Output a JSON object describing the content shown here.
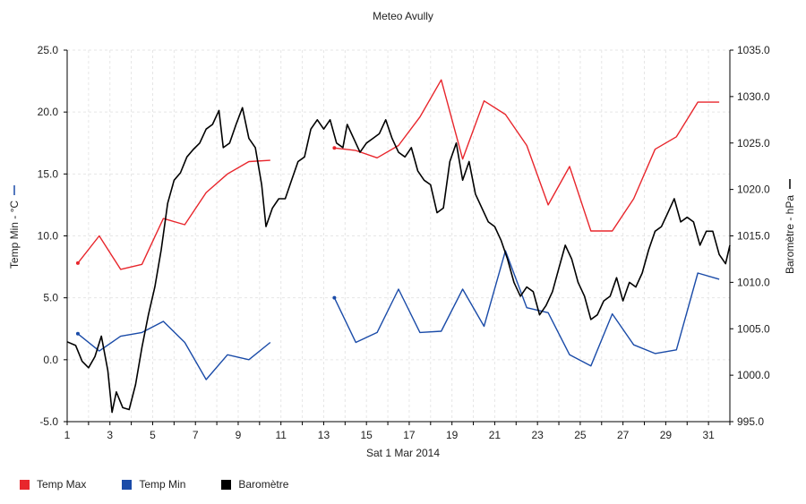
{
  "chart_data": {
    "type": "line",
    "title": "Meteo  Avully",
    "xlabel": "Sat 1 Mar 2014",
    "ylabel_left": "Temp Min - °C",
    "ylabel_right": "Baromètre - hPa",
    "xlim": [
      1,
      32
    ],
    "x_ticks": [
      1,
      3,
      5,
      7,
      9,
      11,
      13,
      15,
      17,
      19,
      21,
      23,
      25,
      27,
      29,
      31
    ],
    "ylim_left": [
      -5,
      25
    ],
    "y_ticks_left": [
      "-5.0",
      "0.0",
      "5.0",
      "10.0",
      "15.0",
      "20.0",
      "25.0"
    ],
    "ylim_right": [
      995,
      1035
    ],
    "y_ticks_right": [
      "995.0",
      "1000.0",
      "1005.0",
      "1010.0",
      "1015.0",
      "1020.0",
      "1025.0",
      "1030.0",
      "1035.0"
    ],
    "grid": true,
    "legend_position": "bottom-left",
    "series": [
      {
        "name": "Temp Max",
        "color": "#e8262c",
        "axis": "left",
        "segments": [
          [
            [
              1.5,
              7.8
            ],
            [
              2.5,
              10.0
            ],
            [
              3.5,
              7.3
            ],
            [
              4.5,
              7.7
            ],
            [
              5.5,
              11.4
            ],
            [
              6.5,
              10.9
            ],
            [
              7.5,
              13.5
            ],
            [
              8.5,
              15.0
            ],
            [
              9.5,
              16.0
            ],
            [
              10.5,
              16.1
            ]
          ],
          [
            [
              13.5,
              17.1
            ],
            [
              14.5,
              16.9
            ],
            [
              15.5,
              16.3
            ],
            [
              16.5,
              17.3
            ],
            [
              17.5,
              19.6
            ],
            [
              18.5,
              22.6
            ],
            [
              19.5,
              16.2
            ],
            [
              20.5,
              20.9
            ],
            [
              21.5,
              19.8
            ],
            [
              22.5,
              17.3
            ],
            [
              23.5,
              12.5
            ],
            [
              24.5,
              15.6
            ],
            [
              25.5,
              10.4
            ],
            [
              26.5,
              10.4
            ],
            [
              27.5,
              13.0
            ],
            [
              28.5,
              17.0
            ],
            [
              29.5,
              18.0
            ],
            [
              30.5,
              20.8
            ],
            [
              31.5,
              20.8
            ]
          ]
        ]
      },
      {
        "name": "Temp Min",
        "color": "#1a4ba8",
        "axis": "left",
        "segments": [
          [
            [
              1.5,
              2.1
            ],
            [
              2.5,
              0.7
            ],
            [
              3.5,
              1.9
            ],
            [
              4.5,
              2.2
            ],
            [
              5.5,
              3.1
            ],
            [
              6.5,
              1.4
            ],
            [
              7.5,
              -1.6
            ],
            [
              8.5,
              0.4
            ],
            [
              9.5,
              0.0
            ],
            [
              10.5,
              1.4
            ]
          ],
          [
            [
              13.5,
              5.0
            ],
            [
              14.5,
              1.4
            ],
            [
              15.5,
              2.2
            ],
            [
              16.5,
              5.7
            ],
            [
              17.5,
              2.2
            ],
            [
              18.5,
              2.3
            ],
            [
              19.5,
              5.7
            ],
            [
              20.5,
              2.7
            ],
            [
              21.5,
              8.8
            ],
            [
              22.5,
              4.2
            ],
            [
              23.5,
              3.8
            ],
            [
              24.5,
              0.4
            ],
            [
              25.5,
              -0.5
            ],
            [
              26.5,
              3.7
            ],
            [
              27.5,
              1.2
            ],
            [
              28.5,
              0.5
            ],
            [
              29.5,
              0.8
            ],
            [
              30.5,
              7.0
            ],
            [
              31.5,
              6.5
            ]
          ]
        ]
      },
      {
        "name": "Baromètre",
        "color": "#000000",
        "axis": "right",
        "points": [
          [
            1.0,
            1003.6
          ],
          [
            1.4,
            1003.2
          ],
          [
            1.7,
            1001.5
          ],
          [
            2.0,
            1000.8
          ],
          [
            2.3,
            1002.0
          ],
          [
            2.6,
            1004.2
          ],
          [
            2.9,
            1000.5
          ],
          [
            3.1,
            996.0
          ],
          [
            3.3,
            998.2
          ],
          [
            3.6,
            996.5
          ],
          [
            3.9,
            996.3
          ],
          [
            4.2,
            999.0
          ],
          [
            4.5,
            1003.0
          ],
          [
            4.8,
            1006.5
          ],
          [
            5.1,
            1009.5
          ],
          [
            5.4,
            1013.5
          ],
          [
            5.7,
            1018.5
          ],
          [
            6.0,
            1021.0
          ],
          [
            6.3,
            1021.8
          ],
          [
            6.6,
            1023.5
          ],
          [
            6.9,
            1024.3
          ],
          [
            7.2,
            1025.0
          ],
          [
            7.5,
            1026.5
          ],
          [
            7.8,
            1027.0
          ],
          [
            8.1,
            1028.5
          ],
          [
            8.3,
            1024.5
          ],
          [
            8.6,
            1025.0
          ],
          [
            8.9,
            1027.0
          ],
          [
            9.2,
            1028.8
          ],
          [
            9.5,
            1025.5
          ],
          [
            9.8,
            1024.5
          ],
          [
            10.1,
            1020.5
          ],
          [
            10.3,
            1016.0
          ],
          [
            10.6,
            1018.0
          ],
          [
            10.9,
            1019.0
          ],
          [
            11.2,
            1019.0
          ],
          [
            11.5,
            1021.0
          ],
          [
            11.8,
            1023.0
          ],
          [
            12.1,
            1023.5
          ],
          [
            12.4,
            1026.5
          ],
          [
            12.7,
            1027.5
          ],
          [
            13.0,
            1026.5
          ],
          [
            13.3,
            1027.5
          ],
          [
            13.6,
            1025.0
          ],
          [
            13.9,
            1024.5
          ],
          [
            14.1,
            1027.0
          ],
          [
            14.4,
            1025.5
          ],
          [
            14.7,
            1024.0
          ],
          [
            15.0,
            1025.0
          ],
          [
            15.3,
            1025.5
          ],
          [
            15.6,
            1026.0
          ],
          [
            15.9,
            1027.5
          ],
          [
            16.2,
            1025.5
          ],
          [
            16.5,
            1024.0
          ],
          [
            16.8,
            1023.5
          ],
          [
            17.1,
            1024.5
          ],
          [
            17.4,
            1022.0
          ],
          [
            17.7,
            1021.0
          ],
          [
            18.0,
            1020.5
          ],
          [
            18.3,
            1017.5
          ],
          [
            18.6,
            1018.0
          ],
          [
            18.9,
            1023.0
          ],
          [
            19.2,
            1025.0
          ],
          [
            19.5,
            1021.0
          ],
          [
            19.8,
            1023.0
          ],
          [
            20.1,
            1019.5
          ],
          [
            20.4,
            1018.0
          ],
          [
            20.7,
            1016.5
          ],
          [
            21.0,
            1016.0
          ],
          [
            21.3,
            1014.5
          ],
          [
            21.6,
            1012.5
          ],
          [
            21.9,
            1010.0
          ],
          [
            22.2,
            1008.5
          ],
          [
            22.5,
            1009.5
          ],
          [
            22.8,
            1009.0
          ],
          [
            23.1,
            1006.5
          ],
          [
            23.4,
            1007.5
          ],
          [
            23.7,
            1009.0
          ],
          [
            24.0,
            1011.5
          ],
          [
            24.3,
            1014.0
          ],
          [
            24.6,
            1012.5
          ],
          [
            24.9,
            1010.0
          ],
          [
            25.2,
            1008.5
          ],
          [
            25.5,
            1006.0
          ],
          [
            25.8,
            1006.5
          ],
          [
            26.1,
            1008.0
          ],
          [
            26.4,
            1008.5
          ],
          [
            26.7,
            1010.5
          ],
          [
            27.0,
            1008.0
          ],
          [
            27.3,
            1010.0
          ],
          [
            27.6,
            1009.5
          ],
          [
            27.9,
            1011.0
          ],
          [
            28.2,
            1013.5
          ],
          [
            28.5,
            1015.5
          ],
          [
            28.8,
            1016.0
          ],
          [
            29.1,
            1017.5
          ],
          [
            29.4,
            1019.0
          ],
          [
            29.7,
            1016.5
          ],
          [
            30.0,
            1017.0
          ],
          [
            30.3,
            1016.5
          ],
          [
            30.6,
            1014.0
          ],
          [
            30.9,
            1015.5
          ],
          [
            31.2,
            1015.5
          ],
          [
            31.5,
            1013.0
          ],
          [
            31.8,
            1012.0
          ],
          [
            32.0,
            1014.0
          ]
        ]
      }
    ]
  },
  "legend": {
    "items": [
      {
        "label": "Temp Max",
        "color": "#e8262c"
      },
      {
        "label": "Temp Min",
        "color": "#1a4ba8"
      },
      {
        "label": "Baromètre",
        "color": "#000000"
      }
    ]
  }
}
